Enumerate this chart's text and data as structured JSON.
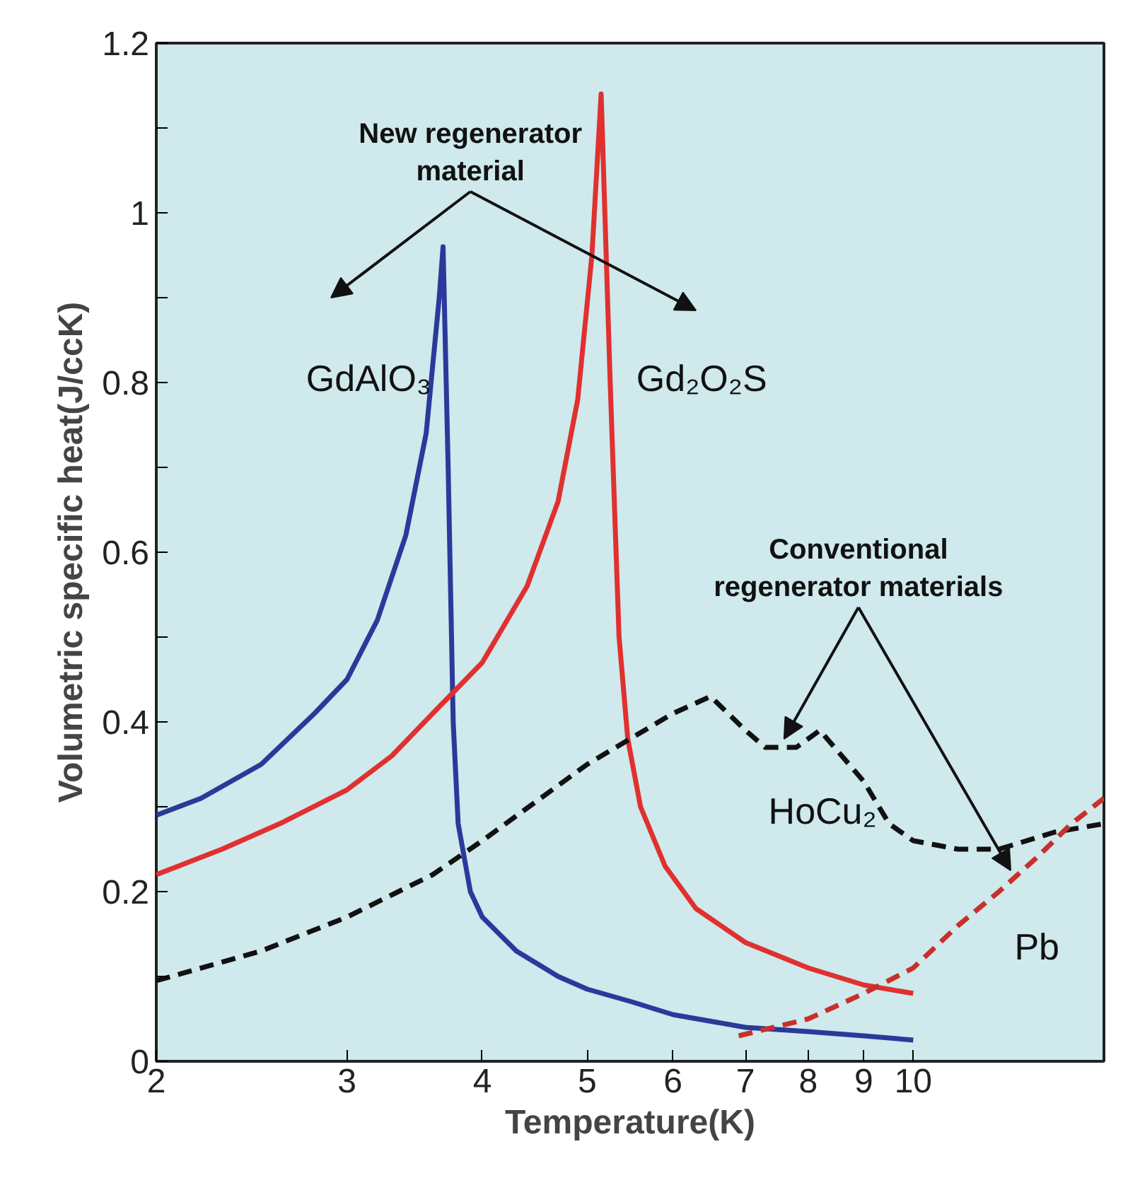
{
  "chart_data": {
    "type": "line",
    "xlabel": "Temperature(K)",
    "ylabel": "Volumetric specific heat(J/ccK)",
    "log": "x",
    "xlim": [
      2,
      15
    ],
    "ylim": [
      0,
      1.2
    ],
    "xticks": [
      2,
      3,
      4,
      5,
      6,
      7,
      8,
      9,
      10
    ],
    "yticks": [
      0,
      {
        "value": 0.1,
        "label": null
      },
      0.2,
      {
        "value": 0.3,
        "label": null
      },
      0.4,
      {
        "value": 0.5,
        "label": null
      },
      0.6,
      {
        "value": 0.7,
        "label": null
      },
      0.8,
      {
        "value": 0.9,
        "label": null
      },
      1,
      {
        "value": 1.1,
        "label": null
      },
      1.2
    ],
    "grid": false,
    "marker": "none",
    "annotations": [
      "New regenerator material",
      {
        "text": "Conventional regenerator materials",
        "x": 7.6,
        "y": 0.38
      }
    ],
    "series": [
      {
        "name": "GdAlO₃",
        "color": "#2a3a9a",
        "line_style": "solid",
        "x": [
          2.0,
          2.2,
          2.5,
          2.8,
          3.0,
          3.2,
          3.4,
          3.55,
          3.65,
          3.68,
          3.72,
          3.76,
          3.8,
          3.9,
          4.0,
          4.3,
          4.7,
          5.0,
          5.5,
          6.0,
          7.0,
          8.0,
          9.0,
          10.0
        ],
        "values": [
          0.29,
          0.31,
          0.35,
          0.41,
          0.45,
          0.52,
          0.62,
          0.74,
          0.9,
          0.96,
          0.7,
          0.4,
          0.28,
          0.2,
          0.17,
          0.13,
          0.1,
          0.085,
          0.07,
          0.055,
          0.04,
          0.035,
          0.03,
          0.025
        ]
      },
      {
        "name": "Gd₂O₂S",
        "color": "#e03030",
        "line_style": "solid",
        "x": [
          2.0,
          2.3,
          2.6,
          3.0,
          3.3,
          3.6,
          4.0,
          4.4,
          4.7,
          4.9,
          5.05,
          5.15,
          5.25,
          5.35,
          5.45,
          5.6,
          5.9,
          6.3,
          7.0,
          8.0,
          9.0,
          10.0
        ],
        "values": [
          0.22,
          0.25,
          0.28,
          0.32,
          0.36,
          0.41,
          0.47,
          0.56,
          0.66,
          0.78,
          0.95,
          1.14,
          0.8,
          0.5,
          0.38,
          0.3,
          0.23,
          0.18,
          0.14,
          0.11,
          0.09,
          0.08
        ]
      },
      {
        "name": "HoCu₂",
        "color": "#111111",
        "line_style": "dashed",
        "x": [
          2.0,
          2.5,
          3.0,
          3.6,
          4.0,
          5.0,
          6.0,
          6.5,
          7.0,
          7.3,
          7.8,
          8.2,
          9.0,
          9.5,
          10.0,
          11.0,
          12.0,
          13.5,
          15.0
        ],
        "values": [
          0.095,
          0.13,
          0.17,
          0.22,
          0.26,
          0.35,
          0.41,
          0.43,
          0.39,
          0.37,
          0.37,
          0.39,
          0.33,
          0.28,
          0.26,
          0.25,
          0.25,
          0.27,
          0.28
        ]
      },
      {
        "name": "Pb",
        "color": "#c8302a",
        "line_style": "dashed",
        "x": [
          6.9,
          8.0,
          9.0,
          10.0,
          11.0,
          12.0,
          13.0,
          14.0,
          15.0
        ],
        "values": [
          0.03,
          0.05,
          0.08,
          0.11,
          0.16,
          0.2,
          0.24,
          0.28,
          0.31
        ]
      }
    ]
  }
}
